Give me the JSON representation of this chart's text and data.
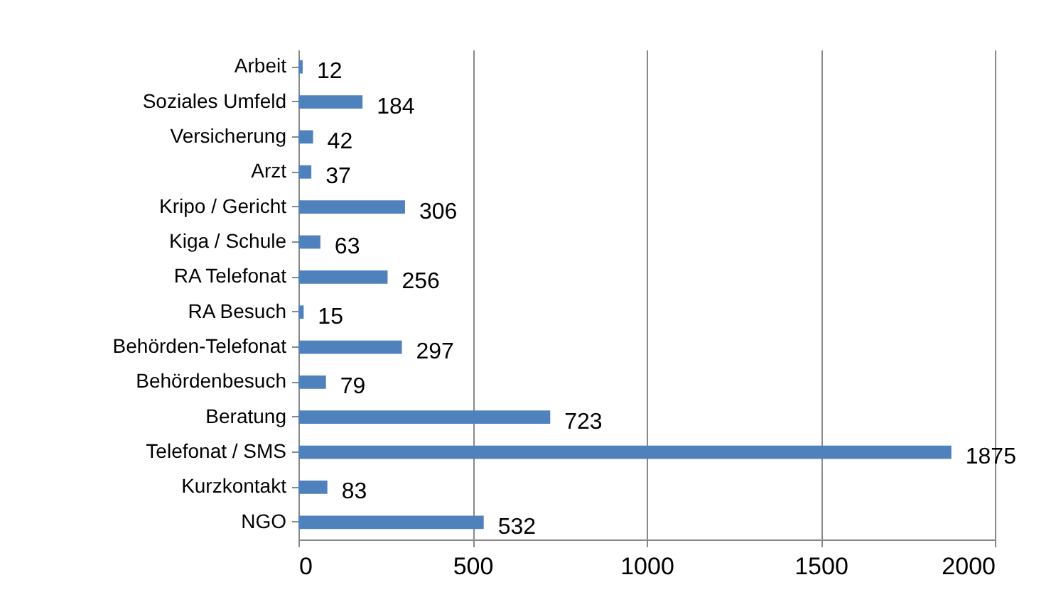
{
  "chart_data": {
    "type": "bar",
    "orientation": "horizontal",
    "categories": [
      "Arbeit",
      "Soziales Umfeld",
      "Versicherung",
      "Arzt",
      "Kripo / Gericht",
      "Kiga / Schule",
      "RA Telefonat",
      "RA Besuch",
      "Behörden-Telefonat",
      "Behördenbesuch",
      "Beratung",
      "Telefonat / SMS",
      "Kurzkontakt",
      "NGO"
    ],
    "values": [
      12,
      184,
      42,
      37,
      306,
      63,
      256,
      15,
      297,
      79,
      723,
      1875,
      83,
      532
    ],
    "color": "#4f81bd",
    "xlim": [
      0,
      2000
    ],
    "xticks": [
      0,
      500,
      1000,
      1500,
      2000
    ],
    "grid": "x",
    "data_labels": true
  }
}
